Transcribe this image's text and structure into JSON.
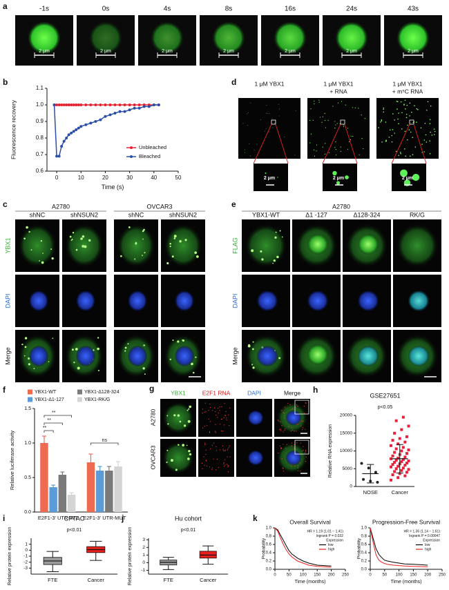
{
  "image_panels": {
    "a": {
      "label": "a",
      "times": [
        "-1s",
        "0s",
        "4s",
        "8s",
        "16s",
        "24s",
        "43s"
      ],
      "scale": "2 μm"
    },
    "d": {
      "label": "d",
      "conditions": [
        [
          "1 μM YBX1"
        ],
        [
          "1 μM YBX1",
          "+ RNA"
        ],
        [
          "1 μM YBX1",
          "+ m⁵C RNA"
        ]
      ],
      "scale": "2 μm"
    },
    "c": {
      "label": "c",
      "groups": [
        "A2780",
        "OVCAR3"
      ],
      "columns": [
        "shNC",
        "shNSUN2",
        "shNC",
        "shNSUN2"
      ],
      "rows": [
        "YBX1",
        "DAPI",
        "Merge"
      ]
    },
    "e": {
      "label": "e",
      "group": "A2780",
      "columns": [
        "YBX1-WT",
        "Δ1 -127",
        "Δ128-324",
        "RK/G"
      ],
      "rows": [
        "FLAG",
        "DAPI",
        "Merge"
      ]
    },
    "g": {
      "label": "g",
      "columns": [
        "YBX1",
        "E2F1 RNA",
        "DAPI",
        "Merge"
      ],
      "rows": [
        "A2780",
        "OVCAR3"
      ]
    }
  },
  "chart_data": [
    {
      "type": "line",
      "panel": "b",
      "ylabel": "Fluorescence recovery",
      "xlabel": "Time (s)",
      "markers": true,
      "x": [
        -1,
        0,
        1,
        2,
        3,
        4,
        5,
        6,
        7,
        8,
        9,
        10,
        12,
        14,
        16,
        18,
        20,
        22,
        24,
        26,
        28,
        30,
        32,
        34,
        36,
        38,
        40,
        42
      ],
      "series": [
        {
          "name": "Unbleached",
          "color": "#e8212f",
          "values": [
            1,
            1,
            1,
            1,
            1,
            1,
            1,
            1,
            1,
            1,
            1,
            1,
            1,
            1,
            1,
            1,
            1,
            1,
            1,
            1,
            1,
            1,
            1,
            1,
            1,
            1,
            1,
            1
          ]
        },
        {
          "name": "Bleached",
          "color": "#2b4fa8",
          "values": [
            1,
            0.69,
            0.69,
            0.75,
            0.78,
            0.8,
            0.82,
            0.83,
            0.84,
            0.85,
            0.86,
            0.87,
            0.88,
            0.89,
            0.9,
            0.91,
            0.93,
            0.94,
            0.95,
            0.96,
            0.96,
            0.97,
            0.98,
            0.98,
            0.99,
            0.99,
            1,
            1
          ]
        }
      ],
      "xlim": [
        -4,
        50
      ],
      "xticks": [
        0,
        10,
        20,
        30,
        40,
        50
      ],
      "ylim": [
        0.6,
        1.1
      ],
      "yticks": [
        0.6,
        0.7,
        0.8,
        0.9,
        {
          "value": 1,
          "label": "1.0"
        },
        1.1
      ],
      "legend": "lower right"
    },
    {
      "type": "bar",
      "panel": "f",
      "ylabel": "Relative luciferase activity",
      "categories": [
        "E2F1-3' UTR-WT",
        "E2F1-3' UTR-MUT"
      ],
      "series": [
        {
          "name": "YBX1-WT",
          "color": "#ee6a50",
          "values": [
            1,
            0.72
          ],
          "errors": [
            0.1,
            0.12
          ]
        },
        {
          "name": "YBX1-Δ1-127",
          "color": "#5a9bd8",
          "values": [
            0.36,
            0.6
          ],
          "errors": [
            0.03,
            0.06
          ]
        },
        {
          "name": "YBX1-Δ128-324",
          "color": "#7a7a7a",
          "values": [
            0.54,
            0.6
          ],
          "errors": [
            0.04,
            0.06
          ]
        },
        {
          "name": "YBX1-RK/G",
          "color": "#d4d4d4",
          "values": [
            0.25,
            0.66
          ],
          "errors": [
            0.03,
            0.07
          ]
        }
      ],
      "ylim": [
        0,
        1.5
      ],
      "yticks": [
        {
          "value": 0,
          "label": "0.0"
        },
        0.5,
        {
          "value": 1,
          "label": "1.0"
        },
        1.5
      ],
      "significance": [
        "**",
        "**",
        "**",
        "ns"
      ]
    },
    {
      "type": "dot",
      "panel": "h",
      "title": "GSE27651",
      "subtitle": "p<0.05",
      "ylabel": "Relative RNA expression",
      "categories": [
        "NOSE",
        "Cancer"
      ],
      "colors": [
        "#222222",
        "#e8213a"
      ],
      "points": [
        [
          6500,
          5200,
          4000,
          2000,
          1500,
          1200
        ],
        [
          1800,
          2500,
          3000,
          3300,
          3600,
          4000,
          4200,
          4500,
          4800,
          5000,
          5200,
          5500,
          5700,
          6000,
          6200,
          6400,
          6600,
          6800,
          7000,
          7200,
          7400,
          7600,
          7800,
          8000,
          8300,
          8600,
          9000,
          9300,
          9600,
          10000,
          10300,
          10600,
          11000,
          11500,
          12000,
          12500,
          13000,
          13500,
          14000,
          15000,
          16000,
          17000,
          18500,
          19500
        ]
      ],
      "mean": [
        3600,
        7800
      ],
      "sd": [
        2600,
        4000
      ],
      "ylim": [
        0,
        20000
      ],
      "yticks": [
        0,
        5000,
        10000,
        15000,
        20000
      ]
    },
    {
      "type": "box",
      "panel": "i",
      "title": "CPTAC",
      "subtitle": "p<0.01",
      "ylabel": "Relative protein expression",
      "categories": [
        "FTE",
        "Cancer"
      ],
      "colors": [
        "#9a9a9a",
        "#e8201c"
      ],
      "boxes": [
        {
          "min": -3.6,
          "q1": -2.4,
          "median": -1.8,
          "q3": -1.2,
          "max": -0.2
        },
        {
          "min": -1.7,
          "q1": -0.4,
          "median": 0.1,
          "q3": 0.6,
          "max": 1.5
        }
      ],
      "ylim": [
        -4,
        2
      ],
      "yticks": [
        -3,
        -2,
        -1,
        0,
        1
      ]
    },
    {
      "type": "box",
      "panel": "j",
      "title": "Hu cohort",
      "subtitle": "p<0.01",
      "ylabel": "Relative protein expression",
      "categories": [
        "FTE",
        "Cancer"
      ],
      "colors": [
        "#9a9a9a",
        "#e8201c"
      ],
      "boxes": [
        {
          "min": -0.9,
          "q1": -0.3,
          "median": 0.05,
          "q3": 0.35,
          "max": 0.7
        },
        {
          "min": -0.2,
          "q1": 0.6,
          "median": 1,
          "q3": 1.5,
          "max": 2.2
        }
      ],
      "ylim": [
        -1.5,
        3.2
      ],
      "yticks": [
        -1,
        0,
        1,
        2,
        3
      ]
    },
    {
      "type": "line",
      "panel": "k",
      "title": "Overall Survival",
      "ylabel": "Probability",
      "xlabel": "Time (months)",
      "x": [
        0,
        10,
        20,
        30,
        40,
        50,
        60,
        80,
        100,
        120,
        150,
        200
      ],
      "series": [
        {
          "name": "low",
          "color": "#000000",
          "values": [
            1,
            0.95,
            0.82,
            0.7,
            0.57,
            0.45,
            0.37,
            0.27,
            0.2,
            0.15,
            0.1,
            0.08
          ]
        },
        {
          "name": "high",
          "color": "#e8201c",
          "values": [
            1,
            0.92,
            0.75,
            0.6,
            0.47,
            0.37,
            0.3,
            0.2,
            0.15,
            0.1,
            0.07,
            0.05
          ]
        }
      ],
      "xlim": [
        0,
        250
      ],
      "xticks": [
        0,
        50,
        100,
        150,
        200,
        250
      ],
      "ylim": [
        0,
        1
      ],
      "yticks": [
        {
          "value": 0,
          "label": "0.0"
        },
        0.2,
        0.4,
        0.6,
        0.8,
        {
          "value": 1,
          "label": "1.0"
        }
      ],
      "annotations": [
        "HR = 1.19 (1.01 − 1.41)",
        "logrank P = 0.032",
        "Expression"
      ],
      "legend": "upper right"
    },
    {
      "type": "line",
      "title": "Progression-Free Survival",
      "ylabel": "Probability",
      "xlabel": "Time (months)",
      "x": [
        0,
        10,
        20,
        30,
        40,
        50,
        60,
        80,
        100,
        120,
        150,
        200
      ],
      "series": [
        {
          "name": "low",
          "color": "#000000",
          "values": [
            1,
            0.75,
            0.5,
            0.36,
            0.28,
            0.22,
            0.2,
            0.17,
            0.15,
            0.13,
            0.12,
            0.1
          ]
        },
        {
          "name": "high",
          "color": "#e8201c",
          "values": [
            1,
            0.65,
            0.35,
            0.22,
            0.17,
            0.14,
            0.12,
            0.1,
            0.09,
            0.08,
            0.07,
            0.06
          ]
        }
      ],
      "xlim": [
        0,
        250
      ],
      "xticks": [
        0,
        50,
        100,
        150,
        200,
        250
      ],
      "ylim": [
        0,
        1
      ],
      "yticks": [
        {
          "value": 0,
          "label": "0.0"
        },
        0.2,
        0.4,
        0.6,
        0.8,
        {
          "value": 1,
          "label": "1.0"
        }
      ],
      "annotations": [
        "HR = 1.36 (1.14 − 1.61)",
        "logrank P = 0.00047",
        "Expression"
      ],
      "legend": "upper right"
    }
  ]
}
